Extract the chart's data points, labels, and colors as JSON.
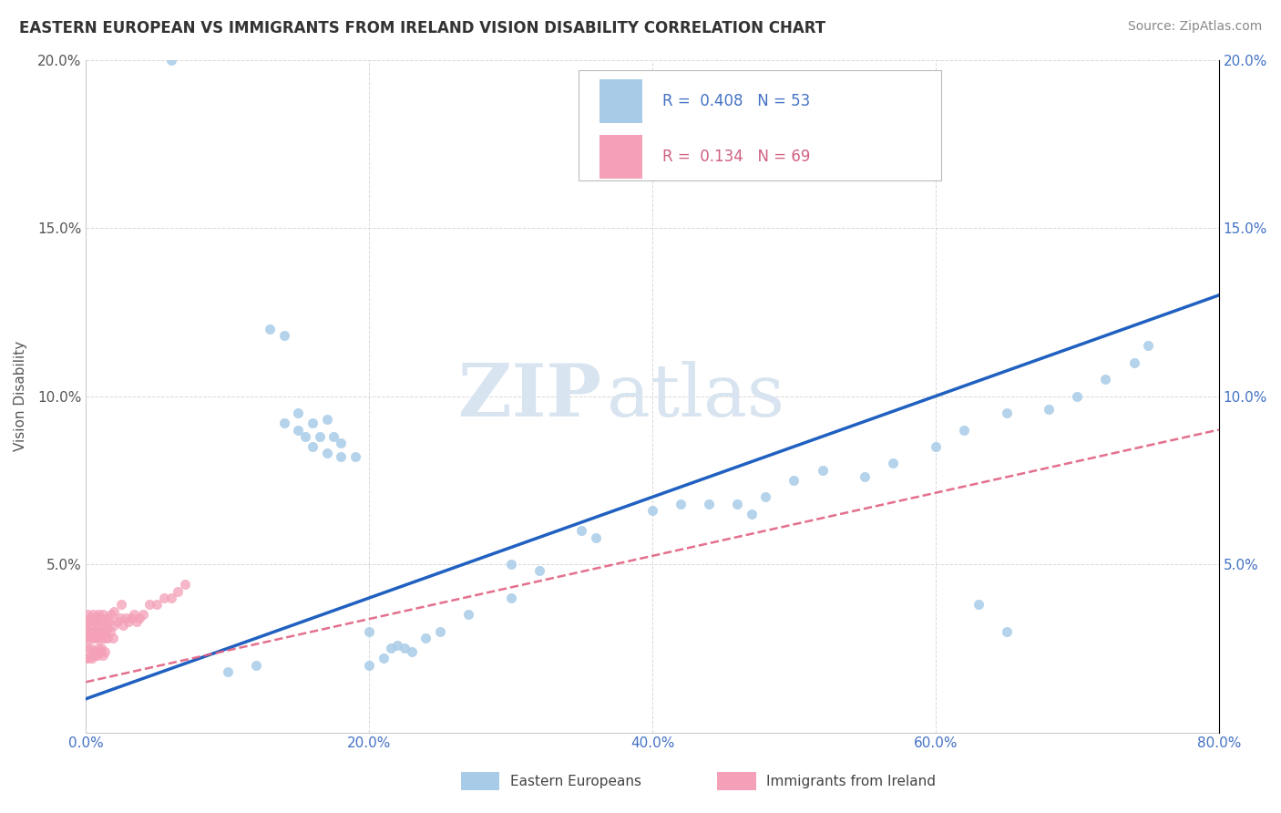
{
  "title": "EASTERN EUROPEAN VS IMMIGRANTS FROM IRELAND VISION DISABILITY CORRELATION CHART",
  "source": "Source: ZipAtlas.com",
  "ylabel": "Vision Disability",
  "xlabel": "",
  "xlim": [
    0,
    0.8
  ],
  "ylim": [
    0,
    0.2
  ],
  "x_ticks": [
    0.0,
    0.2,
    0.4,
    0.6,
    0.8
  ],
  "y_ticks": [
    0.0,
    0.05,
    0.1,
    0.15,
    0.2
  ],
  "x_tick_labels": [
    "0.0%",
    "20.0%",
    "40.0%",
    "60.0%",
    "80.0%"
  ],
  "y_tick_labels": [
    "",
    "5.0%",
    "10.0%",
    "15.0%",
    "20.0%"
  ],
  "R_blue": 0.408,
  "N_blue": 53,
  "R_pink": 0.134,
  "N_pink": 69,
  "blue_color": "#a8cce8",
  "pink_color": "#f4a0b8",
  "trendline_blue_color": "#2060c0",
  "trendline_pink_color": "#e06080",
  "legend_blue_label": "Eastern Europeans",
  "legend_pink_label": "Immigrants from Ireland",
  "watermark_zip": "ZIP",
  "watermark_atlas": "atlas",
  "background_color": "#ffffff",
  "grid_color": "#d0d0d0",
  "blue_scatter_x": [
    0.06,
    0.13,
    0.14,
    0.15,
    0.155,
    0.16,
    0.165,
    0.17,
    0.175,
    0.18,
    0.18,
    0.19,
    0.2,
    0.21,
    0.215,
    0.22,
    0.225,
    0.23,
    0.14,
    0.15,
    0.16,
    0.17,
    0.24,
    0.25,
    0.27,
    0.3,
    0.32,
    0.35,
    0.36,
    0.4,
    0.42,
    0.44,
    0.46,
    0.47,
    0.48,
    0.5,
    0.52,
    0.55,
    0.57,
    0.6,
    0.62,
    0.65,
    0.68,
    0.7,
    0.72,
    0.74,
    0.75,
    0.1,
    0.12,
    0.2,
    0.3,
    0.63,
    0.65
  ],
  "blue_scatter_y": [
    0.2,
    0.12,
    0.118,
    0.09,
    0.088,
    0.092,
    0.088,
    0.093,
    0.088,
    0.086,
    0.082,
    0.082,
    0.02,
    0.022,
    0.025,
    0.026,
    0.025,
    0.024,
    0.092,
    0.095,
    0.085,
    0.083,
    0.028,
    0.03,
    0.035,
    0.04,
    0.048,
    0.06,
    0.058,
    0.066,
    0.068,
    0.068,
    0.068,
    0.065,
    0.07,
    0.075,
    0.078,
    0.076,
    0.08,
    0.085,
    0.09,
    0.095,
    0.096,
    0.1,
    0.105,
    0.11,
    0.115,
    0.018,
    0.02,
    0.03,
    0.05,
    0.038,
    0.03
  ],
  "pink_scatter_x": [
    0.0,
    0.0,
    0.001,
    0.001,
    0.002,
    0.002,
    0.003,
    0.003,
    0.004,
    0.004,
    0.005,
    0.005,
    0.006,
    0.006,
    0.007,
    0.007,
    0.008,
    0.008,
    0.009,
    0.009,
    0.01,
    0.01,
    0.011,
    0.011,
    0.012,
    0.012,
    0.013,
    0.013,
    0.014,
    0.015,
    0.015,
    0.016,
    0.017,
    0.018,
    0.019,
    0.02,
    0.022,
    0.024,
    0.026,
    0.028,
    0.03,
    0.032,
    0.034,
    0.036,
    0.038,
    0.04,
    0.045,
    0.05,
    0.055,
    0.06,
    0.065,
    0.07,
    0.0,
    0.001,
    0.002,
    0.003,
    0.004,
    0.005,
    0.006,
    0.007,
    0.008,
    0.009,
    0.01,
    0.011,
    0.012,
    0.013,
    0.02,
    0.025,
    0.015
  ],
  "pink_scatter_y": [
    0.028,
    0.032,
    0.03,
    0.035,
    0.028,
    0.033,
    0.03,
    0.034,
    0.028,
    0.032,
    0.03,
    0.035,
    0.028,
    0.033,
    0.03,
    0.034,
    0.028,
    0.032,
    0.03,
    0.035,
    0.03,
    0.034,
    0.028,
    0.033,
    0.03,
    0.035,
    0.028,
    0.032,
    0.03,
    0.034,
    0.028,
    0.033,
    0.03,
    0.035,
    0.028,
    0.032,
    0.033,
    0.034,
    0.032,
    0.034,
    0.033,
    0.034,
    0.035,
    0.033,
    0.034,
    0.035,
    0.038,
    0.038,
    0.04,
    0.04,
    0.042,
    0.044,
    0.022,
    0.025,
    0.022,
    0.025,
    0.022,
    0.024,
    0.023,
    0.024,
    0.023,
    0.025,
    0.024,
    0.025,
    0.023,
    0.024,
    0.036,
    0.038,
    0.031
  ]
}
